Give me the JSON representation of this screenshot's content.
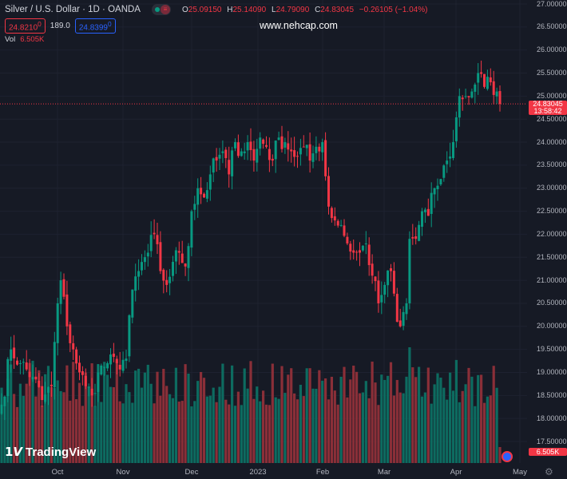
{
  "header": {
    "symbol": "Silver / U.S. Dollar · 1D · OANDA",
    "open_label": "O",
    "open": "25.09150",
    "high_label": "H",
    "high": "25.14090",
    "low_label": "L",
    "low": "24.79090",
    "close_label": "C",
    "close": "24.83045",
    "change": "−0.26105 (−1.04%)",
    "sell_price": "24.8210",
    "sell_sup": "0",
    "spread": "189.0",
    "buy_price": "24.8399",
    "buy_sup": "0",
    "vol_label": "Vol",
    "vol_value": "6.505K"
  },
  "watermark": "www.nehcap.com",
  "logo": "TradingView",
  "price_tag": {
    "price": "24.83045",
    "countdown": "13:58:42"
  },
  "vol_tag": "6.505K",
  "colors": {
    "up": "#089981",
    "down": "#f23645",
    "bg": "#161a25"
  },
  "chart_data": {
    "type": "candlestick",
    "price_axis": [
      "27.00000",
      "26.50000",
      "26.00000",
      "25.50000",
      "25.00000",
      "24.50000",
      "24.00000",
      "23.50000",
      "23.00000",
      "22.50000",
      "22.00000",
      "21.50000",
      "21.00000",
      "20.50000",
      "20.00000",
      "19.50000",
      "19.00000",
      "18.50000",
      "18.00000",
      "17.50000"
    ],
    "ylim": [
      17.5,
      27.0
    ],
    "x_labels": [
      "Oct",
      "Nov",
      "Dec",
      "2023",
      "Feb",
      "Mar",
      "Apr",
      "May"
    ],
    "bars": 161,
    "current_price": 24.83045,
    "close_anchors": [
      [
        0,
        18.3
      ],
      [
        3,
        19.5
      ],
      [
        6,
        19.2
      ],
      [
        10,
        18.9
      ],
      [
        13,
        18.4
      ],
      [
        16,
        18.7
      ],
      [
        18,
        20.5
      ],
      [
        19,
        21.0
      ],
      [
        21,
        20.0
      ],
      [
        23,
        19.5
      ],
      [
        25,
        19.0
      ],
      [
        27,
        18.7
      ],
      [
        29,
        18.5
      ],
      [
        31,
        19.0
      ],
      [
        34,
        19.2
      ],
      [
        37,
        19.2
      ],
      [
        40,
        19.3
      ],
      [
        42,
        20.8
      ],
      [
        44,
        21.2
      ],
      [
        47,
        21.6
      ],
      [
        49,
        22.0
      ],
      [
        51,
        21.2
      ],
      [
        53,
        20.9
      ],
      [
        55,
        21.4
      ],
      [
        57,
        21.6
      ],
      [
        59,
        21.3
      ],
      [
        61,
        22.5
      ],
      [
        63,
        23.0
      ],
      [
        65,
        22.8
      ],
      [
        67,
        23.3
      ],
      [
        69,
        23.6
      ],
      [
        71,
        23.8
      ],
      [
        73,
        23.3
      ],
      [
        75,
        24.0
      ],
      [
        77,
        23.8
      ],
      [
        79,
        24.0
      ],
      [
        81,
        23.6
      ],
      [
        83,
        24.1
      ],
      [
        85,
        23.9
      ],
      [
        87,
        23.6
      ],
      [
        89,
        24.1
      ],
      [
        91,
        24.0
      ],
      [
        93,
        23.8
      ],
      [
        95,
        23.7
      ],
      [
        97,
        23.9
      ],
      [
        99,
        23.6
      ],
      [
        101,
        23.9
      ],
      [
        103,
        24.0
      ],
      [
        105,
        22.6
      ],
      [
        107,
        22.3
      ],
      [
        109,
        22.2
      ],
      [
        111,
        21.8
      ],
      [
        113,
        21.6
      ],
      [
        115,
        21.6
      ],
      [
        117,
        21.8
      ],
      [
        119,
        21.1
      ],
      [
        121,
        20.5
      ],
      [
        123,
        20.9
      ],
      [
        125,
        21.2
      ],
      [
        127,
        20.1
      ],
      [
        128,
        20.0
      ],
      [
        130,
        20.5
      ],
      [
        131,
        21.9
      ],
      [
        133,
        21.9
      ],
      [
        135,
        22.5
      ],
      [
        137,
        22.4
      ],
      [
        139,
        23.0
      ],
      [
        141,
        23.2
      ],
      [
        143,
        23.6
      ],
      [
        145,
        24.0
      ],
      [
        147,
        25.0
      ],
      [
        149,
        25.0
      ],
      [
        151,
        25.1
      ],
      [
        153,
        25.5
      ],
      [
        155,
        25.2
      ],
      [
        157,
        25.3
      ],
      [
        159,
        25.1
      ],
      [
        160,
        24.83
      ]
    ]
  }
}
